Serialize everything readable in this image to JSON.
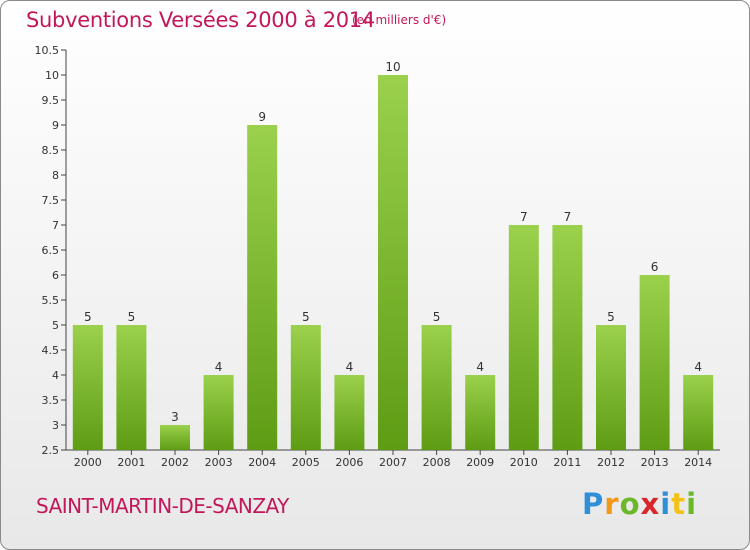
{
  "title": "Subventions Versées 2000 à 2014",
  "subtitle": "(en milliers d'€)",
  "commune": "SAINT-MARTIN-DE-SANZAY",
  "logo": {
    "text": "Proxiti",
    "letters": [
      "P",
      "r",
      "o",
      "x",
      "i",
      "t",
      "i"
    ]
  },
  "colors": {
    "title": "#c2185b",
    "bar_top": "#9bd14c",
    "bar_bottom": "#5e9c14"
  },
  "chart_data": {
    "type": "bar",
    "categories": [
      "2000",
      "2001",
      "2002",
      "2003",
      "2004",
      "2005",
      "2006",
      "2007",
      "2008",
      "2009",
      "2010",
      "2011",
      "2012",
      "2013",
      "2014"
    ],
    "values": [
      5,
      5,
      3,
      4,
      9,
      5,
      4,
      10,
      5,
      4,
      7,
      7,
      5,
      6,
      4
    ],
    "data_labels": [
      "5",
      "5",
      "3",
      "4",
      "9",
      "5",
      "4",
      "10",
      "5",
      "4",
      "7",
      "7",
      "5",
      "6",
      "4"
    ],
    "yticks": [
      "2.5",
      "3",
      "3.5",
      "4",
      "4.5",
      "5",
      "5.5",
      "6",
      "6.5",
      "7",
      "7.5",
      "8",
      "8.5",
      "9",
      "9.5",
      "10",
      "10.5"
    ],
    "ylim": [
      2.5,
      10.5
    ],
    "xlabel": "",
    "ylabel": "",
    "grid": false,
    "legend": "none"
  }
}
